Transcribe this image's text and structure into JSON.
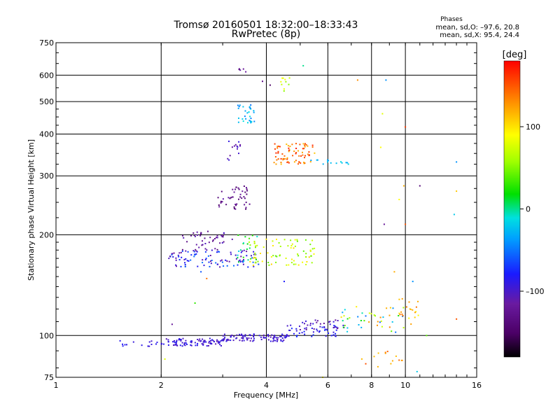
{
  "chart_data": {
    "type": "scatter",
    "title": "Tromsø 20160501 18:32:00–18:33:43",
    "subtitle": "RwPretec (8p)",
    "xlabel": "Frequency [MHz]",
    "ylabel": "Stationary phase Virtual Height [km]",
    "x_scale": "log",
    "y_scale": "log",
    "xlim": [
      1,
      16
    ],
    "ylim": [
      75,
      750
    ],
    "x_ticks": [
      1,
      2,
      4,
      6,
      8,
      10,
      16
    ],
    "x_tick_labels": [
      "1",
      "2",
      "4",
      "6",
      "8",
      "10",
      "16"
    ],
    "y_ticks": [
      75,
      100,
      200,
      300,
      400,
      500,
      600,
      750
    ],
    "y_tick_labels": [
      "75",
      "100",
      "200",
      "300",
      "400",
      "500",
      "600",
      "750"
    ],
    "grid": true,
    "colorbar": {
      "label": "[deg]",
      "range": [
        -180,
        180
      ],
      "ticks": [
        100,
        0,
        -100
      ],
      "tick_labels": [
        "100",
        "0",
        "–100"
      ],
      "colors": [
        "#000000",
        "#6a0090",
        "#1a1aff",
        "#00d8ff",
        "#00e000",
        "#ffff00",
        "#ff8000",
        "#ff0000"
      ]
    },
    "phase_summary": {
      "title": "Phases",
      "o_mode": "mean, sd,O:  –97.6, 20.8",
      "x_mode": "mean, sd,X:  95.4, 24.4"
    },
    "clusters": [
      {
        "f": [
          1.45,
          1.95
        ],
        "h": [
          92,
          97
        ],
        "phase": [
          -100,
          -80
        ],
        "n": 14
      },
      {
        "f": [
          2.0,
          3.0
        ],
        "h": [
          93,
          98
        ],
        "phase": [
          -110,
          -80
        ],
        "n": 90
      },
      {
        "f": [
          3.0,
          4.6
        ],
        "h": [
          96,
          101
        ],
        "phase": [
          -110,
          -85
        ],
        "n": 100
      },
      {
        "f": [
          4.5,
          6.5
        ],
        "h": [
          99,
          108
        ],
        "phase": [
          -100,
          -70
        ],
        "n": 45
      },
      {
        "f": [
          5.0,
          7.0
        ],
        "h": [
          104,
          112
        ],
        "phase": [
          -120,
          -90
        ],
        "n": 30
      },
      {
        "f": [
          6.5,
          10.0
        ],
        "h": [
          102,
          122
        ],
        "phase": [
          -60,
          140
        ],
        "n": 45
      },
      {
        "f": [
          9.5,
          11.0
        ],
        "h": [
          108,
          130
        ],
        "phase": [
          90,
          150
        ],
        "n": 18
      },
      {
        "f": [
          7.5,
          10.0
        ],
        "h": [
          80,
          90
        ],
        "phase": [
          110,
          160
        ],
        "n": 14
      },
      {
        "f": [
          2.1,
          3.8
        ],
        "h": [
          160,
          180
        ],
        "phase": [
          -120,
          -50
        ],
        "n": 100
      },
      {
        "f": [
          2.3,
          3.2
        ],
        "h": [
          180,
          205
        ],
        "phase": [
          -140,
          -100
        ],
        "n": 45
      },
      {
        "f": [
          3.5,
          5.5
        ],
        "h": [
          162,
          195
        ],
        "phase": [
          40,
          110
        ],
        "n": 80
      },
      {
        "f": [
          3.3,
          3.8
        ],
        "h": [
          160,
          200
        ],
        "phase": [
          -20,
          40
        ],
        "n": 20
      },
      {
        "f": [
          2.9,
          3.6
        ],
        "h": [
          238,
          280
        ],
        "phase": [
          -150,
          -110
        ],
        "n": 45
      },
      {
        "f": [
          3.1,
          3.4
        ],
        "h": [
          330,
          390
        ],
        "phase": [
          -120,
          -90
        ],
        "n": 14
      },
      {
        "f": [
          4.2,
          5.5
        ],
        "h": [
          325,
          375
        ],
        "phase": [
          110,
          170
        ],
        "n": 75
      },
      {
        "f": [
          5.3,
          7.0
        ],
        "h": [
          325,
          335
        ],
        "phase": [
          -40,
          -10
        ],
        "n": 14
      },
      {
        "f": [
          3.3,
          3.7
        ],
        "h": [
          430,
          490
        ],
        "phase": [
          -50,
          -10
        ],
        "n": 30
      },
      {
        "f": [
          4.4,
          4.7
        ],
        "h": [
          530,
          590
        ],
        "phase": [
          50,
          90
        ],
        "n": 10
      },
      {
        "f": [
          3.3,
          3.5
        ],
        "h": [
          610,
          630
        ],
        "phase": [
          -150,
          -110
        ],
        "n": 5
      }
    ],
    "scattered_points": [
      {
        "f": 8.8,
        "h": 580,
        "phase": -40
      },
      {
        "f": 7.3,
        "h": 580,
        "phase": 130
      },
      {
        "f": 10.0,
        "h": 420,
        "phase": 160
      },
      {
        "f": 9.9,
        "h": 280,
        "phase": 120
      },
      {
        "f": 11.0,
        "h": 280,
        "phase": -140
      },
      {
        "f": 14.0,
        "h": 330,
        "phase": -40
      },
      {
        "f": 14.0,
        "h": 270,
        "phase": 110
      },
      {
        "f": 13.8,
        "h": 230,
        "phase": -20
      },
      {
        "f": 8.7,
        "h": 215,
        "phase": -120
      },
      {
        "f": 10.0,
        "h": 215,
        "phase": 150
      },
      {
        "f": 9.6,
        "h": 255,
        "phase": 90
      },
      {
        "f": 8.6,
        "h": 460,
        "phase": 80
      },
      {
        "f": 8.5,
        "h": 365,
        "phase": 90
      },
      {
        "f": 4.1,
        "h": 560,
        "phase": -150
      },
      {
        "f": 3.9,
        "h": 575,
        "phase": -130
      },
      {
        "f": 5.1,
        "h": 640,
        "phase": 0
      },
      {
        "f": 2.6,
        "h": 155,
        "phase": -60
      },
      {
        "f": 2.7,
        "h": 148,
        "phase": 140
      },
      {
        "f": 2.5,
        "h": 125,
        "phase": 30
      },
      {
        "f": 2.05,
        "h": 85,
        "phase": 80
      },
      {
        "f": 2.15,
        "h": 108,
        "phase": -120
      },
      {
        "f": 11.5,
        "h": 100,
        "phase": 40
      },
      {
        "f": 9.3,
        "h": 155,
        "phase": 120
      },
      {
        "f": 10.5,
        "h": 145,
        "phase": -40
      },
      {
        "f": 14.0,
        "h": 112,
        "phase": 150
      },
      {
        "f": 4.5,
        "h": 145,
        "phase": -80
      },
      {
        "f": 5.8,
        "h": 75,
        "phase": 90
      },
      {
        "f": 10.8,
        "h": 78,
        "phase": -20
      }
    ]
  }
}
